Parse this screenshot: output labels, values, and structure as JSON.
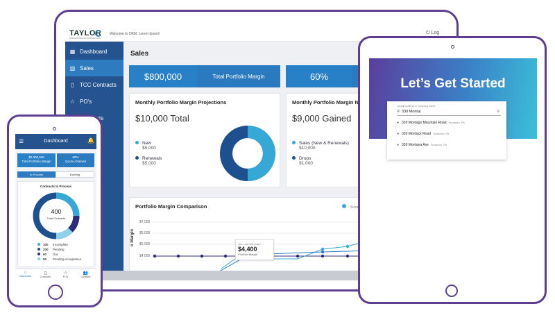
{
  "desktop": {
    "logo": "TAYLOR",
    "logo_sub": "CONSULTING & CONTRACTING",
    "welcome": "Welcome to CRM, Lorem Ipsum!",
    "logout": "Log Out",
    "sidebar": [
      {
        "label": "Dashboard",
        "icon": "grid-icon"
      },
      {
        "label": "Sales",
        "icon": "bar-chart-icon",
        "active": true
      },
      {
        "label": "TCC Contracts",
        "icon": "document-icon"
      },
      {
        "label": "PO's",
        "icon": "star-icon"
      },
      {
        "label": "Contracts",
        "icon": "document-icon"
      },
      {
        "label": "s",
        "icon": "people-icon"
      }
    ],
    "page_title": "Sales",
    "kpis": [
      {
        "value": "$800,000",
        "label": "Total Portfolio Margin"
      },
      {
        "value": "60%",
        "label": ""
      }
    ],
    "projections": {
      "title": "Monthly Portfolio Margin Projections",
      "total": "$10,000 Total",
      "legend": [
        {
          "name": "New",
          "value": "$5,000",
          "color": "#35a8d6"
        },
        {
          "name": "Renewals",
          "value": "$5,000",
          "color": "#1e4f8f"
        }
      ]
    },
    "gained": {
      "title": "Monthly Portfolio Margin Ne",
      "total": "$9,000 Gained",
      "legend": [
        {
          "name": "Sales (New & Renewals)",
          "value": "$10,000",
          "color": "#35a8d6"
        },
        {
          "name": "Drops",
          "value": "$1,000",
          "color": "#1e4f8f"
        }
      ]
    },
    "comparison": {
      "title": "Portfolio Margin Comparison",
      "legend_item": "%curr",
      "ylabel": "o Margin",
      "yticks": [
        "$7,000",
        "$6,000",
        "$5,000",
        "$4,000"
      ],
      "tooltip_title": "Jun <current year>",
      "tooltip_value": "$4,400",
      "tooltip_label": "Portfolio Margin"
    }
  },
  "tablet": {
    "title": "Let’s Get Started",
    "search_label": "Lookup Address or Company Name",
    "search_value": "330 Monta|",
    "suggestions": [
      {
        "street": "330 Montago Mountain Road",
        "city": "Scranton, PA"
      },
      {
        "street": "330 Montack Road",
        "city": "Scranton, PA"
      },
      {
        "street": "330 Montana Ave",
        "city": "Scranton, PA"
      }
    ]
  },
  "phone": {
    "header_title": "Dashboard",
    "kpis": [
      {
        "value": "$2,000,000",
        "label": "Total Portfolio Margin"
      },
      {
        "value": "60%",
        "label": "Quota Attained"
      }
    ],
    "tabs": [
      "In Process",
      "Expiring"
    ],
    "card_title": "Contracts In Process",
    "donut_value": "400",
    "donut_label": "Total Contracts",
    "legend": [
      {
        "count": "100",
        "name": "Incomplete",
        "color": "#35a8d6"
      },
      {
        "count": "200",
        "name": "Pending",
        "color": "#1e4f8f"
      },
      {
        "count": "50",
        "name": "Out",
        "color": "#2c2d7a"
      },
      {
        "count": "50",
        "name": "Pending Acceptance",
        "color": "#8fd0ea"
      }
    ],
    "nav": [
      {
        "label": "Dashboard",
        "icon": "home-icon",
        "active": true
      },
      {
        "label": "Contracts",
        "icon": "document-icon"
      },
      {
        "label": "PO's",
        "icon": "star-icon"
      },
      {
        "label": "Contacts",
        "icon": "people-icon"
      }
    ]
  }
}
